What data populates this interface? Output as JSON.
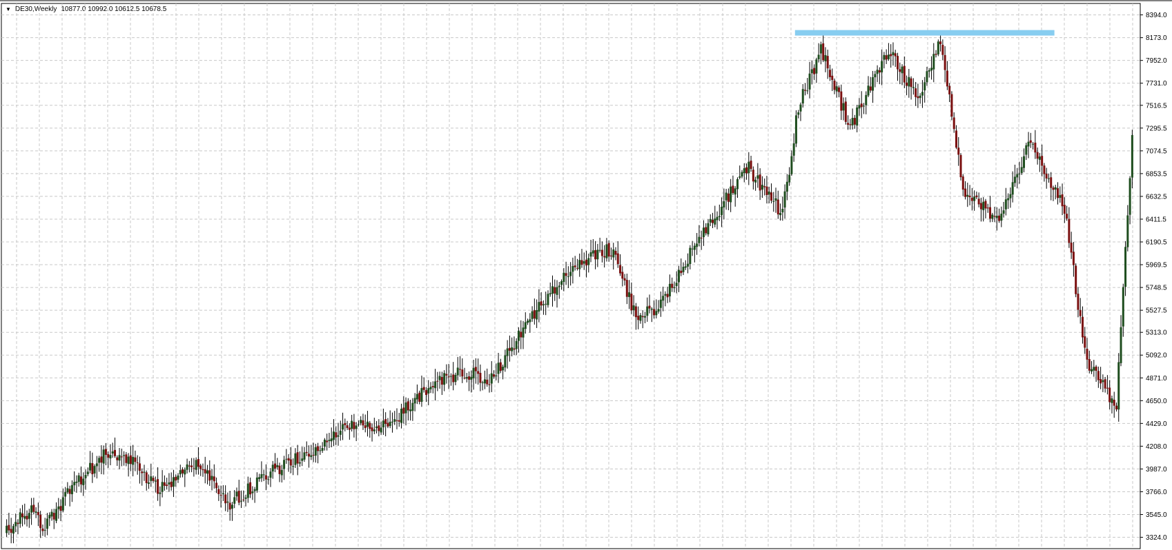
{
  "header": {
    "symbol": "DE30,Weekly",
    "ohlc": "10877.0 10992.0 10612.5 10678.5",
    "menu_icon": "dropdown-triangle-icon"
  },
  "colors": {
    "background": "#ffffff",
    "grid": "#c8c8c8",
    "up_candle": "#1e4d1e",
    "down_candle": "#7a0f0f",
    "wick": "#000000",
    "resistance": "#87cdf0"
  },
  "chart_data": {
    "type": "candlestick",
    "title": "",
    "xlabel": "",
    "ylabel": "",
    "ylim": [
      3214,
      8505
    ],
    "grid": true,
    "price_axis_side": "right",
    "y_ticks": [
      "8394.0",
      "8173.0",
      "7952.0",
      "7731.0",
      "7516.5",
      "7295.5",
      "7074.5",
      "6853.5",
      "6632.5",
      "6411.5",
      "6190.5",
      "5969.5",
      "5748.5",
      "5527.5",
      "5313.0",
      "5092.0",
      "4871.0",
      "4650.0",
      "4429.0",
      "4208.0",
      "3987.0",
      "3766.0",
      "3545.0",
      "3324.0"
    ],
    "x_range_weeks": 500,
    "closing_path": [
      [
        0,
        3380
      ],
      [
        12,
        3600
      ],
      [
        18,
        3420
      ],
      [
        30,
        3800
      ],
      [
        45,
        4130
      ],
      [
        58,
        4050
      ],
      [
        68,
        3780
      ],
      [
        85,
        4030
      ],
      [
        100,
        3660
      ],
      [
        118,
        3950
      ],
      [
        135,
        4140
      ],
      [
        150,
        4390
      ],
      [
        170,
        4400
      ],
      [
        190,
        4820
      ],
      [
        205,
        4930
      ],
      [
        215,
        4830
      ],
      [
        235,
        5500
      ],
      [
        255,
        6000
      ],
      [
        270,
        6130
      ],
      [
        280,
        5450
      ],
      [
        290,
        5560
      ],
      [
        310,
        6300
      ],
      [
        330,
        6900
      ],
      [
        345,
        6470
      ],
      [
        352,
        7500
      ],
      [
        362,
        8050
      ],
      [
        375,
        7300
      ],
      [
        392,
        8050
      ],
      [
        405,
        7600
      ],
      [
        415,
        8150
      ],
      [
        425,
        6700
      ],
      [
        440,
        6400
      ],
      [
        455,
        7180
      ],
      [
        470,
        6500
      ],
      [
        480,
        5000
      ],
      [
        493,
        4600
      ],
      [
        500,
        7200
      ]
    ],
    "resistance_line": {
      "price": 8220,
      "x_start_week": 350,
      "x_end_week": 465
    }
  }
}
